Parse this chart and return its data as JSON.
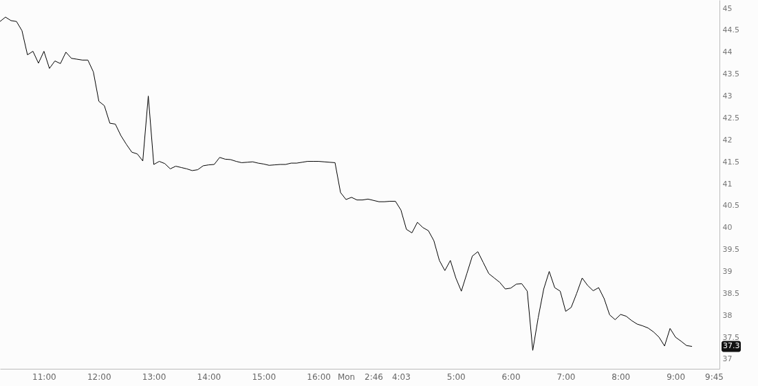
{
  "chart_data": {
    "type": "line",
    "categories": [
      null,
      null,
      null,
      null,
      null,
      null,
      null,
      null,
      "11:00",
      null,
      null,
      null,
      null,
      null,
      null,
      null,
      null,
      null,
      "12:00",
      null,
      null,
      null,
      null,
      null,
      null,
      null,
      null,
      null,
      "13:00",
      null,
      null,
      null,
      null,
      null,
      null,
      null,
      null,
      null,
      "14:00",
      null,
      null,
      null,
      null,
      null,
      null,
      null,
      null,
      null,
      "15:00",
      null,
      null,
      null,
      null,
      null,
      null,
      null,
      null,
      null,
      "16:00",
      null,
      null,
      null,
      null,
      "Mon",
      null,
      null,
      null,
      null,
      "2:46",
      null,
      null,
      null,
      null,
      "4:03",
      null,
      null,
      null,
      null,
      null,
      null,
      null,
      null,
      null,
      "5:00",
      null,
      null,
      null,
      null,
      null,
      null,
      null,
      null,
      null,
      "6:00",
      null,
      null,
      null,
      null,
      null,
      null,
      null,
      null,
      null,
      "7:00",
      null,
      null,
      null,
      null,
      null,
      null,
      null,
      null,
      null,
      "8:00",
      null,
      null,
      null,
      null,
      null,
      null,
      null,
      null,
      null,
      "9:00",
      null,
      null,
      null,
      null,
      null,
      null,
      "9:45",
      null
    ],
    "series": [
      {
        "color": "#000000",
        "values": [
          44.7,
          44.8,
          44.72,
          44.7,
          44.49,
          43.94,
          44.02,
          43.75,
          44.02,
          43.63,
          43.8,
          43.74,
          44.0,
          43.86,
          43.84,
          43.82,
          43.82,
          43.55,
          42.88,
          42.78,
          42.38,
          42.36,
          42.1,
          41.9,
          41.72,
          41.68,
          41.52,
          43.0,
          41.44,
          41.51,
          41.46,
          41.34,
          41.4,
          41.37,
          41.34,
          41.3,
          41.32,
          41.41,
          41.43,
          41.44,
          41.6,
          41.56,
          41.55,
          41.51,
          41.48,
          41.49,
          41.5,
          41.47,
          41.45,
          41.42,
          41.43,
          41.44,
          41.44,
          41.47,
          41.47,
          41.49,
          41.51,
          41.51,
          41.51,
          41.5,
          41.49,
          41.48,
          40.8,
          40.64,
          40.69,
          40.63,
          40.63,
          40.65,
          40.62,
          40.59,
          40.59,
          40.6,
          40.6,
          40.4,
          39.96,
          39.88,
          40.12,
          40.0,
          39.93,
          39.7,
          39.25,
          39.02,
          39.25,
          38.85,
          38.55,
          38.95,
          39.35,
          39.45,
          39.2,
          38.95,
          38.85,
          38.75,
          38.6,
          38.62,
          38.71,
          38.72,
          38.55,
          37.2,
          37.95,
          38.6,
          39.0,
          38.63,
          38.55,
          38.09,
          38.18,
          38.5,
          38.85,
          38.68,
          38.56,
          38.63,
          38.38,
          38.01,
          37.9,
          38.02,
          37.98,
          37.88,
          37.8,
          37.76,
          37.71,
          37.62,
          37.5,
          37.3,
          37.7,
          37.5,
          37.41,
          37.31,
          37.29,
          null,
          null,
          null,
          null,
          null
        ]
      }
    ],
    "ylim": [
      36.78,
      45.19
    ],
    "yticks": [
      37,
      37.5,
      38,
      38.5,
      39,
      39.5,
      40,
      40.5,
      41,
      41.5,
      42,
      42.5,
      43,
      43.5,
      44,
      44.5,
      45
    ],
    "annotations": [
      "37.3"
    ],
    "grid": false
  }
}
